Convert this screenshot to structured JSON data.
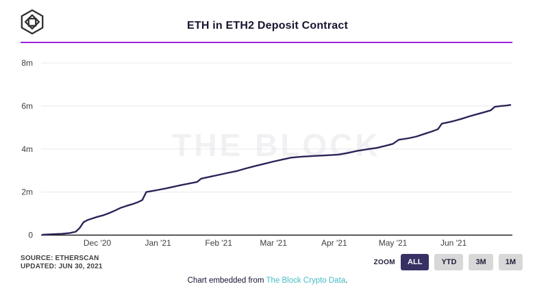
{
  "header": {
    "title": "ETH in ETH2 Deposit Contract",
    "logo_name": "the-block-cube-logo",
    "divider_color": "#9d20da"
  },
  "chart_data": {
    "type": "line",
    "title": "ETH in ETH2 Deposit Contract",
    "xlabel": "",
    "ylabel": "",
    "unit": "ETH (millions)",
    "grid": "horizontal",
    "legend": "none",
    "watermark": "THE BLOCK",
    "line_color": "#2a2457",
    "x_range": [
      "2020-11-03",
      "2021-06-30"
    ],
    "ylim": [
      0,
      8
    ],
    "y_ticks": [
      {
        "label": "0",
        "value": 0
      },
      {
        "label": "2m",
        "value": 2
      },
      {
        "label": "4m",
        "value": 4
      },
      {
        "label": "6m",
        "value": 6
      },
      {
        "label": "8m",
        "value": 8
      }
    ],
    "x_ticks": [
      {
        "label": "Dec '20",
        "date": "2020-12-01"
      },
      {
        "label": "Jan '21",
        "date": "2021-01-01"
      },
      {
        "label": "Feb '21",
        "date": "2021-02-01"
      },
      {
        "label": "Mar '21",
        "date": "2021-03-01"
      },
      {
        "label": "Apr '21",
        "date": "2021-04-01"
      },
      {
        "label": "May '21",
        "date": "2021-05-01"
      },
      {
        "label": "Jun '21",
        "date": "2021-06-01"
      }
    ],
    "series": [
      {
        "name": "ETH in ETH2 Deposit Contract",
        "points": [
          [
            "2020-11-03",
            0.02
          ],
          [
            "2020-11-08",
            0.04
          ],
          [
            "2020-11-13",
            0.06
          ],
          [
            "2020-11-17",
            0.1
          ],
          [
            "2020-11-20",
            0.16
          ],
          [
            "2020-11-22",
            0.33
          ],
          [
            "2020-11-24",
            0.6
          ],
          [
            "2020-11-26",
            0.7
          ],
          [
            "2020-11-28",
            0.76
          ],
          [
            "2020-12-01",
            0.85
          ],
          [
            "2020-12-04",
            0.92
          ],
          [
            "2020-12-07",
            1.02
          ],
          [
            "2020-12-10",
            1.14
          ],
          [
            "2020-12-13",
            1.27
          ],
          [
            "2020-12-16",
            1.36
          ],
          [
            "2020-12-19",
            1.44
          ],
          [
            "2020-12-22",
            1.54
          ],
          [
            "2020-12-24",
            1.63
          ],
          [
            "2020-12-26",
            2.0
          ],
          [
            "2020-12-29",
            2.05
          ],
          [
            "2021-01-01",
            2.1
          ],
          [
            "2021-01-05",
            2.17
          ],
          [
            "2021-01-09",
            2.25
          ],
          [
            "2021-01-13",
            2.33
          ],
          [
            "2021-01-17",
            2.4
          ],
          [
            "2021-01-21",
            2.47
          ],
          [
            "2021-01-23",
            2.62
          ],
          [
            "2021-01-27",
            2.7
          ],
          [
            "2021-02-01",
            2.8
          ],
          [
            "2021-02-05",
            2.88
          ],
          [
            "2021-02-10",
            2.97
          ],
          [
            "2021-02-15",
            3.1
          ],
          [
            "2021-02-20",
            3.22
          ],
          [
            "2021-02-25",
            3.33
          ],
          [
            "2021-03-01",
            3.42
          ],
          [
            "2021-03-06",
            3.52
          ],
          [
            "2021-03-10",
            3.6
          ],
          [
            "2021-03-16",
            3.65
          ],
          [
            "2021-03-22",
            3.68
          ],
          [
            "2021-03-28",
            3.71
          ],
          [
            "2021-04-03",
            3.74
          ],
          [
            "2021-04-08",
            3.82
          ],
          [
            "2021-04-13",
            3.92
          ],
          [
            "2021-04-18",
            3.99
          ],
          [
            "2021-04-23",
            4.06
          ],
          [
            "2021-04-28",
            4.17
          ],
          [
            "2021-05-01",
            4.24
          ],
          [
            "2021-05-04",
            4.43
          ],
          [
            "2021-05-09",
            4.5
          ],
          [
            "2021-05-13",
            4.58
          ],
          [
            "2021-05-17",
            4.7
          ],
          [
            "2021-05-21",
            4.82
          ],
          [
            "2021-05-24",
            4.92
          ],
          [
            "2021-05-26",
            5.18
          ],
          [
            "2021-05-29",
            5.24
          ],
          [
            "2021-06-01",
            5.3
          ],
          [
            "2021-06-05",
            5.4
          ],
          [
            "2021-06-09",
            5.52
          ],
          [
            "2021-06-13",
            5.62
          ],
          [
            "2021-06-17",
            5.72
          ],
          [
            "2021-06-20",
            5.8
          ],
          [
            "2021-06-22",
            5.96
          ],
          [
            "2021-06-25",
            6.0
          ],
          [
            "2021-06-28",
            6.02
          ],
          [
            "2021-06-30",
            6.05
          ]
        ]
      }
    ]
  },
  "footer": {
    "source_line1": "SOURCE: ETHERSCAN",
    "source_line2": "UPDATED: JUN 30, 2021",
    "zoom_label": "ZOOM",
    "zoom_buttons": [
      {
        "label": "ALL",
        "active": true
      },
      {
        "label": "YTD",
        "active": false
      },
      {
        "label": "3M",
        "active": false
      },
      {
        "label": "1M",
        "active": false
      }
    ],
    "embed_text": "Chart embedded from ",
    "embed_link": "The Block Crypto Data",
    "embed_suffix": "."
  },
  "colors": {
    "line": "#2a2457",
    "divider": "#9d20da",
    "gridline": "#e8e8ea",
    "axis": "#1f1f1f",
    "tick_text": "#3d3d3d",
    "watermark": "#f1f1f4",
    "active_button_bg": "#363063",
    "button_bg": "#d8d8d8",
    "link": "#43bcc7"
  }
}
